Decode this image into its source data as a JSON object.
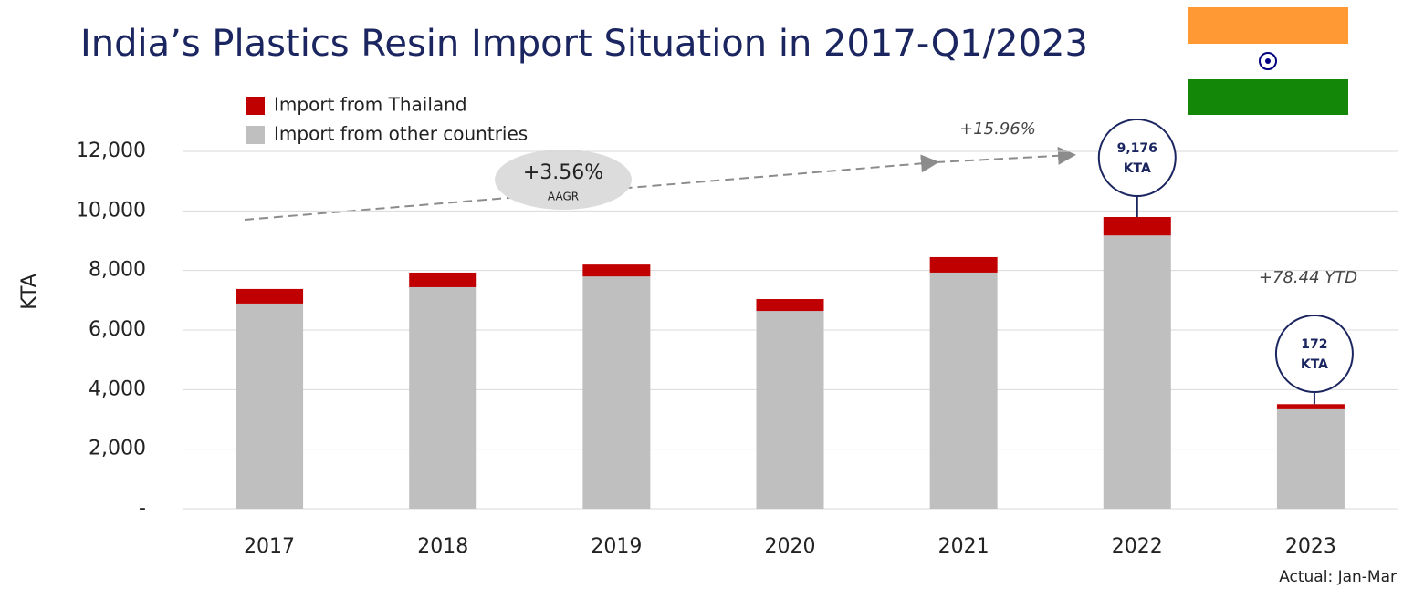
{
  "chart_data": {
    "type": "stacked_bar",
    "title": "India’s Plastics Resin Import Situation in 2017-Q1/2023",
    "y_label": "KTA",
    "categories": [
      "2017",
      "2018",
      "2019",
      "2020",
      "2021",
      "2022",
      "2023"
    ],
    "series": [
      {
        "name": "Import from Thailand",
        "color": "#c00000",
        "values": [
          490,
          490,
          400,
          400,
          520,
          620,
          172
        ]
      },
      {
        "name": "Import from other countries",
        "color": "#bfbfbf",
        "values": [
          6890,
          7440,
          7800,
          6640,
          7930,
          9176,
          3340
        ]
      }
    ],
    "ylim": [
      0,
      12000
    ],
    "yticks": [
      {
        "value": 0,
        "label": "-"
      },
      {
        "value": 2000,
        "label": "2,000"
      },
      {
        "value": 4000,
        "label": "4,000"
      },
      {
        "value": 6000,
        "label": "6,000"
      },
      {
        "value": 8000,
        "label": "8,000"
      },
      {
        "value": 10000,
        "label": "10,000"
      },
      {
        "value": 12000,
        "label": "12,000"
      }
    ],
    "grid": true,
    "trend": {
      "value": "+3.56%",
      "label": "AAGR",
      "end_note": "+15.96%"
    },
    "callouts": [
      {
        "lines": [
          "9,176",
          "KTA"
        ]
      },
      {
        "lines": [
          "172",
          "KTA"
        ]
      }
    ],
    "ytd_note": "+78.44 YTD",
    "footnote": "Actual: Jan-Mar"
  }
}
